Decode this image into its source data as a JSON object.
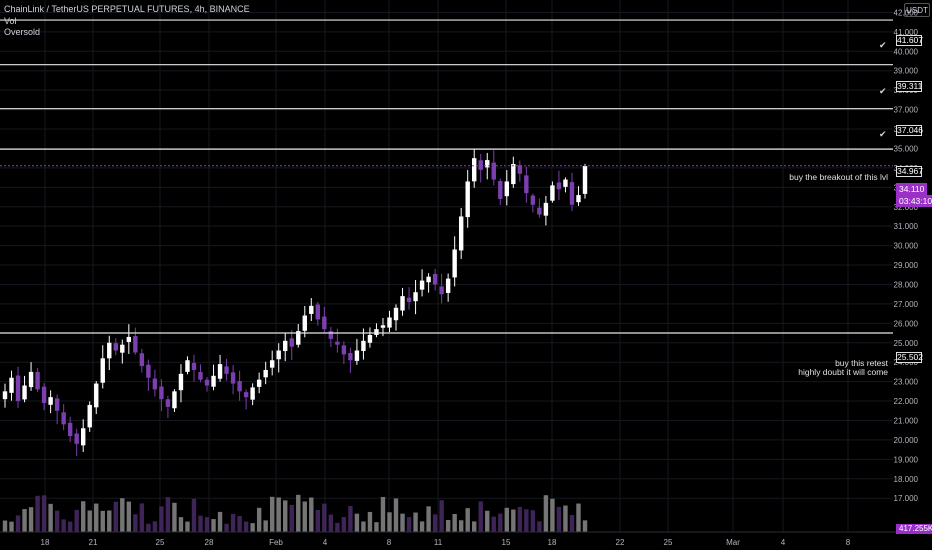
{
  "header": {
    "title": "ChainLink / TetherUS PERPETUAL FUTURES, 4h, BINANCE",
    "vol_label": "Vol",
    "indicator_label": "Oversold"
  },
  "currency_button": "USDT",
  "colors": {
    "background": "#000000",
    "candle_up": "#ffffff",
    "candle_down": "#7b3fb0",
    "line": "#e6e6e6",
    "accent": "#9b30c8"
  },
  "chart_data": {
    "type": "candlestick",
    "title": "ChainLink / TetherUS PERPETUAL FUTURES, 4h, BINANCE",
    "y_ticks": [
      "17.000",
      "18.000",
      "19.000",
      "20.000",
      "21.000",
      "22.000",
      "23.000",
      "24.000",
      "25.000",
      "26.000",
      "27.000",
      "28.000",
      "29.000",
      "30.000",
      "31.000",
      "32.000",
      "33.000",
      "34.000",
      "35.000",
      "36.000",
      "37.000",
      "38.000",
      "39.000",
      "40.000",
      "41.000",
      "42.000"
    ],
    "ylim": [
      16.5,
      42.6
    ],
    "x_ticks": [
      "18",
      "21",
      "25",
      "28",
      "Feb",
      "4",
      "8",
      "11",
      "15",
      "18",
      "22",
      "25",
      "Mar",
      "4",
      "8"
    ],
    "horizontal_levels": [
      {
        "value": 41.607,
        "label": "41.607"
      },
      {
        "value": 39.311,
        "label": "39.311"
      },
      {
        "value": 37.046,
        "label": "37.046"
      },
      {
        "value": 34.967,
        "label": "34.967"
      },
      {
        "value": 25.502,
        "label": "25.502"
      }
    ],
    "last_price": "34.110",
    "countdown": "03:43:10",
    "volume_value": "417.255K",
    "annotations": [
      {
        "text": "buy the breakout of this lvl",
        "at_level": "34.967"
      },
      {
        "text": "buy this retest",
        "at_level": "25.502"
      },
      {
        "text": "highly doubt it will come",
        "at_level": "25.502"
      }
    ],
    "price_path": [
      22.5,
      23.2,
      22.0,
      22.8,
      23.5,
      22.6,
      21.9,
      22.2,
      21.5,
      20.8,
      20.2,
      19.8,
      20.6,
      21.8,
      22.9,
      24.2,
      25.0,
      24.6,
      24.9,
      25.3,
      24.5,
      23.8,
      23.2,
      22.6,
      22.1,
      21.7,
      22.5,
      23.4,
      24.1,
      23.6,
      23.1,
      22.8,
      23.3,
      23.9,
      23.4,
      22.9,
      22.5,
      22.2,
      22.7,
      23.1,
      23.6,
      24.1,
      24.6,
      25.1,
      24.8,
      25.6,
      26.4,
      26.9,
      26.2,
      25.7,
      25.2,
      24.9,
      24.4,
      24.1,
      24.6,
      25.1,
      25.4,
      25.7,
      25.9,
      26.3,
      26.8,
      27.4,
      27.1,
      27.6,
      28.2,
      28.4,
      28.0,
      27.5,
      28.3,
      29.8,
      31.5,
      33.3,
      34.5,
      33.9,
      34.4,
      33.4,
      32.4,
      33.3,
      34.2,
      33.7,
      32.7,
      32.1,
      31.6,
      32.2,
      33.1,
      32.9,
      33.4,
      32.1,
      32.6,
      34.1
    ]
  }
}
